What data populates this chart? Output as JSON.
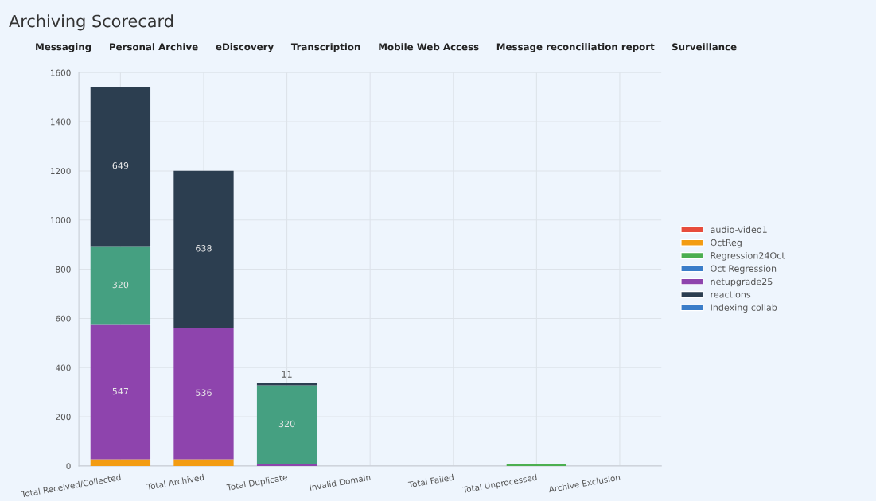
{
  "chart_data": {
    "type": "bar",
    "title": "Archiving Scorecard",
    "stacked": true,
    "annotations": [
      "Messaging",
      "Personal Archive",
      "eDiscovery",
      "Transcription",
      "Mobile Web Access",
      "Message reconciliation report",
      "Surveillance"
    ],
    "categories": [
      "Total Received/Collected",
      "Total Archived",
      "Total Duplicate",
      "Invalid Domain",
      "Total Failed",
      "Total Unprocessed",
      "Archive Exclusion"
    ],
    "ylim": [
      0,
      1600
    ],
    "yticks": [
      0,
      200,
      400,
      600,
      800,
      1000,
      1200,
      1400,
      1600
    ],
    "grid": true,
    "legend": "right",
    "series": [
      {
        "name": "audio-video1",
        "color": "#e74c3c",
        "values": [
          0,
          0,
          0,
          0,
          0,
          0,
          0
        ]
      },
      {
        "name": "OctReg",
        "color": "#f39c12",
        "values": [
          27,
          27,
          0,
          0,
          0,
          0,
          0
        ]
      },
      {
        "name": "Regression24Oct",
        "color": "#4caf50",
        "values": [
          0,
          0,
          0,
          0,
          0,
          6,
          0
        ]
      },
      {
        "name": "Oct Regression",
        "color": "#3a7dc9",
        "values": [
          0,
          0,
          0,
          0,
          0,
          0,
          0
        ]
      },
      {
        "name": "netupgrade25",
        "color": "#8e44ad",
        "values": [
          547,
          536,
          8,
          0,
          0,
          0,
          0
        ],
        "value_labels": [
          "547",
          "536",
          null,
          null,
          null,
          null,
          null
        ]
      },
      {
        "color": "#45a081",
        "values": [
          320,
          0,
          320,
          0,
          0,
          0,
          0
        ],
        "value_labels": [
          "320",
          null,
          "320",
          null,
          null,
          null,
          null
        ]
      },
      {
        "name": "reactions",
        "color": "#2c3e50",
        "values": [
          649,
          638,
          11,
          0,
          0,
          0,
          0
        ],
        "value_labels": [
          "649",
          "638",
          "11",
          null,
          null,
          null,
          null
        ]
      },
      {
        "color": "#e74c3c",
        "values": [
          0,
          0,
          0,
          0,
          0,
          0,
          0
        ]
      },
      {
        "color": "#f39c12",
        "values": [
          0,
          0,
          0,
          0,
          0,
          0,
          0
        ]
      },
      {
        "color": "#4caf50",
        "values": [
          0,
          0,
          0,
          0,
          0,
          0,
          0
        ]
      },
      {
        "name": "Indexing collab",
        "color": "#3a7dc9",
        "values": [
          0,
          0,
          0,
          0,
          0,
          0,
          0
        ]
      },
      {
        "color": "#8e44ad",
        "values": [
          0,
          0,
          0,
          0,
          0,
          0,
          0
        ]
      },
      {
        "color": "#45a081",
        "values": [
          0,
          0,
          0,
          0,
          0,
          0,
          0
        ]
      },
      {
        "color": "#2c3e50",
        "values": [
          0,
          0,
          0,
          0,
          0,
          0,
          0
        ]
      }
    ]
  }
}
